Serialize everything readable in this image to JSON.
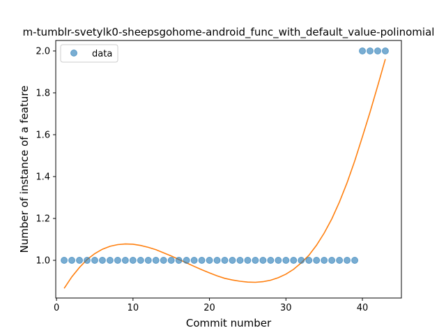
{
  "chart_data": {
    "type": "scatter",
    "title": "m-tumblr-svetylk0-sheepsgohome-android_func_with_default_value-polinomial",
    "xlabel": "Commit number",
    "ylabel": "Number of instance of a feature",
    "xlim": [
      -0.1,
      45.1
    ],
    "ylim": [
      0.82,
      2.05
    ],
    "xticks": [
      0,
      10,
      20,
      30,
      40
    ],
    "yticks": [
      1.0,
      1.2,
      1.4,
      1.6,
      1.8,
      2.0
    ],
    "ytick_labels": [
      "1.0",
      "1.2",
      "1.4",
      "1.6",
      "1.8",
      "2.0"
    ],
    "grid": false,
    "legend": {
      "placement": "top-left",
      "entries": [
        "data"
      ]
    },
    "series": [
      {
        "name": "data",
        "kind": "scatter",
        "color": "#1f77b4",
        "x": [
          1,
          2,
          3,
          4,
          5,
          6,
          7,
          8,
          9,
          10,
          11,
          12,
          13,
          14,
          15,
          16,
          17,
          18,
          19,
          20,
          21,
          22,
          23,
          24,
          25,
          26,
          27,
          28,
          29,
          30,
          31,
          32,
          33,
          34,
          35,
          36,
          37,
          38,
          39,
          40,
          41,
          42,
          43
        ],
        "y": [
          1,
          1,
          1,
          1,
          1,
          1,
          1,
          1,
          1,
          1,
          1,
          1,
          1,
          1,
          1,
          1,
          1,
          1,
          1,
          1,
          1,
          1,
          1,
          1,
          1,
          1,
          1,
          1,
          1,
          1,
          1,
          1,
          1,
          1,
          1,
          1,
          1,
          1,
          1,
          2,
          2,
          2,
          2
        ]
      },
      {
        "kind": "line",
        "color": "#ff7f0e",
        "x": [
          1,
          2,
          3,
          4,
          5,
          6,
          7,
          8,
          9,
          10,
          11,
          12,
          13,
          14,
          15,
          16,
          17,
          18,
          19,
          20,
          21,
          22,
          23,
          24,
          25,
          26,
          27,
          28,
          29,
          30,
          31,
          32,
          33,
          34,
          35,
          36,
          37,
          38,
          39,
          40,
          41,
          42,
          43
        ],
        "y": [
          0.866,
          0.921,
          0.966,
          1.004,
          1.032,
          1.053,
          1.067,
          1.075,
          1.078,
          1.077,
          1.071,
          1.062,
          1.051,
          1.036,
          1.021,
          1.004,
          0.988,
          0.971,
          0.955,
          0.94,
          0.926,
          0.914,
          0.906,
          0.9,
          0.896,
          0.895,
          0.898,
          0.905,
          0.917,
          0.934,
          0.957,
          0.988,
          1.024,
          1.072,
          1.13,
          1.198,
          1.279,
          1.371,
          1.475,
          1.59,
          1.708,
          1.833,
          1.961
        ]
      }
    ]
  }
}
